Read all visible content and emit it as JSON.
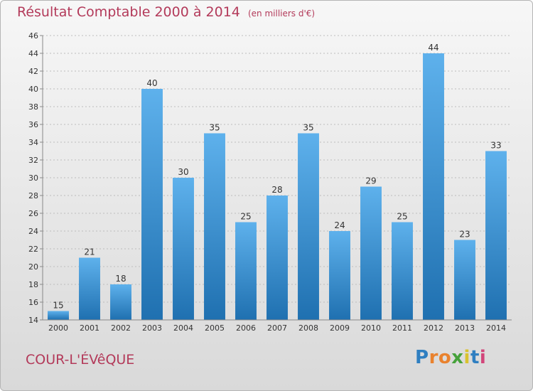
{
  "title": "Résultat Comptable 2000 à 2014",
  "subtitle": "(en milliers d'€)",
  "commune": "COUR-L'ÉVêQUE",
  "logo": {
    "letters": [
      "P",
      "r",
      "o",
      "x",
      "i",
      "t",
      "i"
    ],
    "colors": [
      "#2f7fc1",
      "#e9822e",
      "#e9822e",
      "#46a23b",
      "#d9c22e",
      "#2f7fc1",
      "#d2457a"
    ]
  },
  "chart_data": {
    "type": "bar",
    "title": "Résultat Comptable 2000 à 2014",
    "subtitle": "(en milliers d'€)",
    "categories": [
      "2000",
      "2001",
      "2002",
      "2003",
      "2004",
      "2005",
      "2006",
      "2007",
      "2008",
      "2009",
      "2010",
      "2011",
      "2012",
      "2013",
      "2014"
    ],
    "values": [
      15,
      21,
      18,
      40,
      30,
      35,
      25,
      28,
      35,
      24,
      29,
      25,
      44,
      23,
      33
    ],
    "ylim": [
      14,
      46
    ],
    "yticks": [
      14,
      16,
      18,
      20,
      22,
      24,
      26,
      28,
      30,
      32,
      34,
      36,
      38,
      40,
      42,
      44,
      46
    ],
    "grid": true,
    "bar_color": "#3d96d8"
  }
}
